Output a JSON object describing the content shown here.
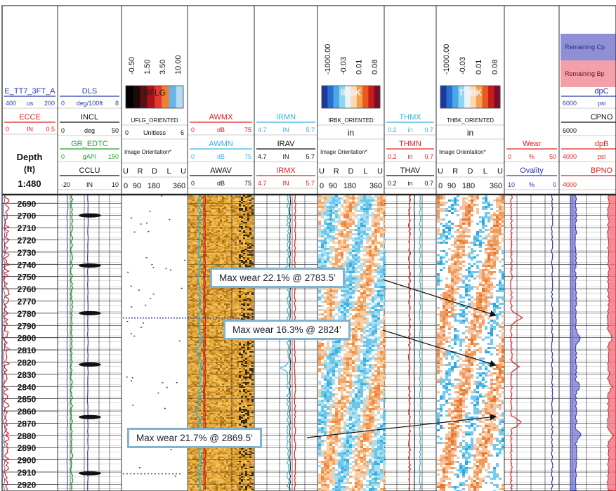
{
  "chart_data": {
    "type": "well-log",
    "depth": {
      "header": [
        "Depth",
        "(ft)",
        "1:480"
      ],
      "ticks": [
        2690,
        2700,
        2710,
        2720,
        2730,
        2740,
        2750,
        2760,
        2770,
        2780,
        2790,
        2800,
        2810,
        2820,
        2830,
        2840,
        2850,
        2860,
        2870,
        2880,
        2890,
        2900,
        2910,
        2920
      ],
      "range": [
        2683.5,
        2925.5
      ]
    },
    "tracks": [
      {
        "curves": [
          {
            "name": "E_TT7_3FT_A",
            "scale": [
              "400",
              "us",
              "200"
            ],
            "color": "#2b3aa8"
          },
          {
            "name": "ECCE",
            "scale": [
              "0",
              "IN",
              "0.5"
            ],
            "color": "#e11d1d"
          }
        ]
      },
      {
        "curves": [
          {
            "name": "DLS",
            "scale": [
              "0",
              "deg/100ft",
              "8"
            ],
            "color": "#2b3aa8"
          },
          {
            "name": "INCL",
            "scale": [
              "0",
              "deg",
              "50"
            ],
            "color": "#111111"
          },
          {
            "name": "GR_EDTC",
            "scale": [
              "0",
              "gAPI",
              "150"
            ],
            "color": "#1f9d27"
          },
          {
            "name": "CCLU",
            "scale": [
              "-20",
              "IN",
              "10"
            ],
            "color": "#111111"
          }
        ]
      },
      {
        "image": "UFLG",
        "ticks": [
          "-0.50",
          "1.50",
          "3.50",
          "10.00"
        ],
        "name": "UFLG_ORIENTED",
        "scale": [
          "0",
          "Unitless",
          "6"
        ],
        "orientation": "Image Orientation*",
        "dirs": [
          "U",
          "R",
          "D",
          "L",
          "U"
        ],
        "degrees": [
          "0",
          "90",
          "180",
          "360"
        ]
      },
      {
        "curves": [
          {
            "name": "AWMX",
            "scale": [
              "0",
              "dB",
              "75"
            ],
            "color": "#e11d1d"
          },
          {
            "name": "AWMN",
            "scale": [
              "0",
              "dB",
              "75"
            ],
            "color": "#3ab0e0"
          },
          {
            "name": "AWAV",
            "scale": [
              "0",
              "dB",
              "75"
            ],
            "color": "#111111"
          }
        ]
      },
      {
        "curves": [
          {
            "name": "IRMN",
            "scale": [
              "4.7",
              "IN",
              "5.7"
            ],
            "color": "#3ab0e0"
          },
          {
            "name": "IRAV",
            "scale": [
              "4.7",
              "IN",
              "5.7"
            ],
            "color": "#111111"
          },
          {
            "name": "IRMX",
            "scale": [
              "4.7",
              "IN",
              "5.7"
            ],
            "color": "#e11d1d"
          }
        ]
      },
      {
        "image": "IRBK",
        "ticks": [
          "-1000.00",
          "-0.03",
          "0.01",
          "0.08"
        ],
        "name": "IRBK_ORIENTED",
        "unit": "in",
        "orientation": "Image Orientation*",
        "dirs": [
          "U",
          "R",
          "D",
          "L",
          "U"
        ],
        "degrees": [
          "0",
          "90",
          "180",
          "360"
        ]
      },
      {
        "curves": [
          {
            "name": "THMX",
            "scale": [
              "0.2",
              "in",
              "0.7"
            ],
            "color": "#3ab0e0"
          },
          {
            "name": "THMN",
            "scale": [
              "0.2",
              "in",
              "0.7"
            ],
            "color": "#e11d1d"
          },
          {
            "name": "THAV",
            "scale": [
              "0.2",
              "in",
              "0.7"
            ],
            "color": "#111111"
          }
        ]
      },
      {
        "image": "THBK",
        "ticks": [
          "-1000.00",
          "-0.03",
          "0.01",
          "0.08"
        ],
        "name": "THBK_ORIENTED",
        "unit": "in",
        "orientation": "Image Orientation*",
        "dirs": [
          "U",
          "R",
          "D",
          "L",
          "U"
        ],
        "degrees": [
          "0",
          "90",
          "180",
          "360"
        ]
      },
      {
        "curves": [
          {
            "name": "Wear",
            "scale": [
              "0",
              "%",
              "50"
            ],
            "color": "#e11d1d"
          },
          {
            "name": "Ovality",
            "scale": [
              "10",
              "%",
              "0"
            ],
            "color": "#2b3aa8"
          }
        ]
      },
      {
        "remaining": [
          "Remaining Cp",
          "Remaining Bp"
        ],
        "curves": [
          {
            "name": "dpC",
            "scale": [
              "6000",
              "psi",
              "100"
            ],
            "color": "#2b3aa8"
          },
          {
            "name": "CPNO",
            "scale": [
              "6000",
              "1000"
            ],
            "color": "#111111"
          },
          {
            "name": "dpB",
            "scale": [
              "4000",
              "psi",
              "900"
            ],
            "color": "#e11d1d"
          },
          {
            "name": "BPNO",
            "scale": [
              "4000",
              "9000"
            ],
            "color": "#e11d1d"
          }
        ]
      }
    ],
    "annotations": [
      {
        "text": "Max wear 22.1%  @ 2783.5’",
        "depth": 2783.5,
        "wear_pct": 22.1
      },
      {
        "text": "Max wear 16.3%  @ 2824’",
        "depth": 2824,
        "wear_pct": 16.3
      },
      {
        "text": "Max wear 21.7%  @ 2869.5’",
        "depth": 2869.5,
        "wear_pct": 21.7
      }
    ]
  }
}
